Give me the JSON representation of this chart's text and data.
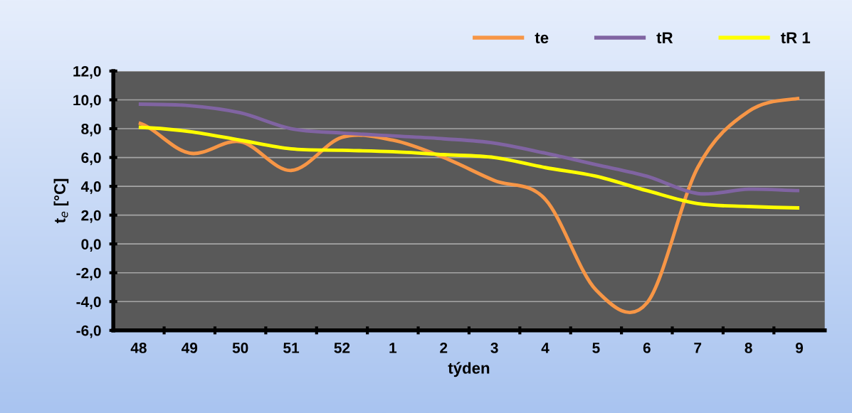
{
  "chart_data": {
    "type": "line",
    "xlabel": "týden",
    "ylabel": "t$_{e}$ [°C]",
    "categories": [
      "48",
      "49",
      "50",
      "51",
      "52",
      "1",
      "2",
      "3",
      "4",
      "5",
      "6",
      "7",
      "8",
      "9"
    ],
    "series": [
      {
        "name": "te",
        "color": "#f79646",
        "values": [
          8.4,
          6.3,
          7.1,
          5.1,
          7.4,
          7.2,
          6.0,
          4.4,
          3.1,
          -3.2,
          -4.1,
          5.3,
          9.2,
          10.1
        ]
      },
      {
        "name": "tR",
        "color": "#8064a2",
        "values": [
          9.7,
          9.6,
          9.1,
          8.0,
          7.7,
          7.5,
          7.3,
          7.0,
          6.3,
          5.5,
          4.7,
          3.5,
          3.8,
          3.7
        ]
      },
      {
        "name": "tR 1",
        "color": "#ffff00",
        "values": [
          8.1,
          7.8,
          7.2,
          6.6,
          6.5,
          6.4,
          6.2,
          6.0,
          5.3,
          4.7,
          3.7,
          2.8,
          2.6,
          2.5
        ]
      }
    ],
    "ylim": [
      -6,
      12
    ],
    "yticks": [
      {
        "value": -6,
        "label": "-6,0"
      },
      {
        "value": -4,
        "label": "-4,0"
      },
      {
        "value": -2,
        "label": "-2,0"
      },
      {
        "value": 0,
        "label": "0,0"
      },
      {
        "value": 2,
        "label": "2,0"
      },
      {
        "value": 4,
        "label": "4,0"
      },
      {
        "value": 6,
        "label": "6,0"
      },
      {
        "value": 8,
        "label": "8,0"
      },
      {
        "value": 10,
        "label": "10,0"
      },
      {
        "value": 12,
        "label": "12,0"
      }
    ],
    "grid": "y",
    "legend": "top right",
    "marker": "none",
    "line_style": "solid"
  }
}
